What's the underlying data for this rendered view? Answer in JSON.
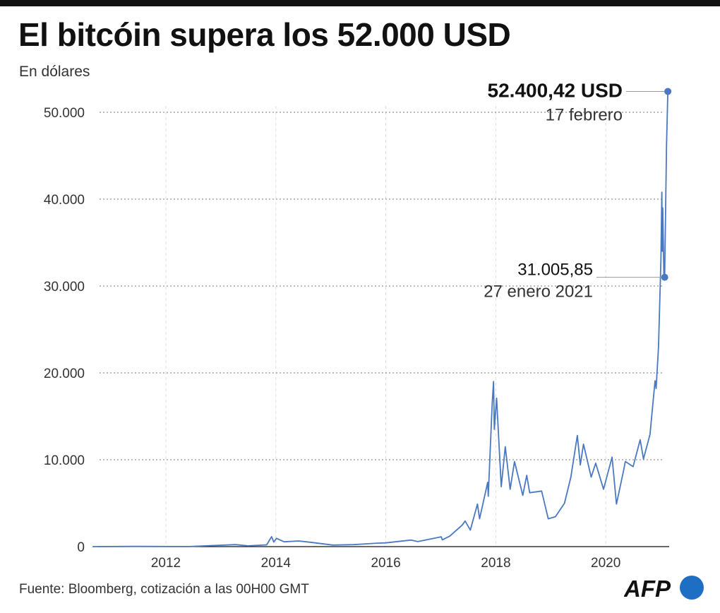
{
  "title": "El bitcóin supera los 52.000 USD",
  "subtitle": "En dólares",
  "source": "Fuente: Bloomberg, cotización a las 00H00 GMT",
  "logo": "AFP",
  "colors": {
    "line": "#4a78c2",
    "logo": "#1e6fc4"
  },
  "chart_data": {
    "type": "line",
    "title": "El bitcóin supera los 52.000 USD",
    "ylabel": "En dólares",
    "ylim": [
      0,
      52400
    ],
    "yticks": [
      0,
      10000,
      20000,
      30000,
      40000,
      50000
    ],
    "ytick_labels": [
      "0",
      "10.000",
      "20.000",
      "30.000",
      "40.000",
      "50.000"
    ],
    "xticks": [
      "2012",
      "2014",
      "2016",
      "2018",
      "2020"
    ],
    "grid": true,
    "series": [
      {
        "points": [
          [
            "2010-09-01",
            0.06
          ],
          [
            "2011-06-08",
            30
          ],
          [
            "2012-06-01",
            6
          ],
          [
            "2013-04-09",
            230
          ],
          [
            "2013-07-01",
            90
          ],
          [
            "2013-11-01",
            200
          ],
          [
            "2013-12-04",
            1150
          ],
          [
            "2013-12-18",
            520
          ],
          [
            "2014-01-05",
            950
          ],
          [
            "2014-02-25",
            550
          ],
          [
            "2014-06-01",
            650
          ],
          [
            "2014-09-01",
            470
          ],
          [
            "2015-01-14",
            180
          ],
          [
            "2015-06-01",
            230
          ],
          [
            "2015-11-04",
            400
          ],
          [
            "2016-01-01",
            430
          ],
          [
            "2016-06-17",
            760
          ],
          [
            "2016-08-01",
            580
          ],
          [
            "2017-01-04",
            1130
          ],
          [
            "2017-01-11",
            780
          ],
          [
            "2017-03-01",
            1200
          ],
          [
            "2017-05-24",
            2500
          ],
          [
            "2017-06-11",
            2950
          ],
          [
            "2017-07-16",
            1900
          ],
          [
            "2017-09-01",
            4900
          ],
          [
            "2017-09-15",
            3200
          ],
          [
            "2017-11-08",
            7400
          ],
          [
            "2017-11-12",
            5800
          ],
          [
            "2017-12-08",
            16500
          ],
          [
            "2017-12-17",
            19000
          ],
          [
            "2017-12-22",
            13500
          ],
          [
            "2018-01-06",
            17100
          ],
          [
            "2018-02-06",
            6900
          ],
          [
            "2018-03-05",
            11500
          ],
          [
            "2018-04-06",
            6600
          ],
          [
            "2018-05-05",
            9800
          ],
          [
            "2018-06-29",
            5900
          ],
          [
            "2018-07-25",
            8200
          ],
          [
            "2018-08-14",
            6200
          ],
          [
            "2018-11-01",
            6400
          ],
          [
            "2018-12-15",
            3200
          ],
          [
            "2019-02-01",
            3450
          ],
          [
            "2019-04-02",
            5000
          ],
          [
            "2019-05-14",
            8000
          ],
          [
            "2019-06-26",
            12800
          ],
          [
            "2019-07-16",
            9400
          ],
          [
            "2019-08-06",
            11800
          ],
          [
            "2019-09-26",
            8000
          ],
          [
            "2019-10-26",
            9600
          ],
          [
            "2019-12-17",
            6600
          ],
          [
            "2020-02-12",
            10300
          ],
          [
            "2020-03-12",
            4900
          ],
          [
            "2020-04-29",
            8800
          ],
          [
            "2020-05-10",
            9800
          ],
          [
            "2020-07-01",
            9200
          ],
          [
            "2020-08-17",
            12300
          ],
          [
            "2020-09-08",
            10100
          ],
          [
            "2020-10-21",
            12900
          ],
          [
            "2020-11-24",
            19100
          ],
          [
            "2020-12-01",
            18200
          ],
          [
            "2020-12-17",
            23000
          ],
          [
            "2021-01-02",
            33000
          ],
          [
            "2021-01-08",
            40800
          ],
          [
            "2021-01-11",
            34000
          ],
          [
            "2021-01-14",
            39000
          ],
          [
            "2021-01-22",
            30800
          ],
          [
            "2021-01-27",
            31005.85
          ],
          [
            "2021-02-08",
            46000
          ],
          [
            "2021-02-17",
            52400.42
          ]
        ]
      }
    ],
    "annotations": [
      {
        "value": "52.400,42 USD",
        "label": "17 febrero",
        "x": "2021-02-17",
        "y": 52400.42
      },
      {
        "value": "31.005,85",
        "label": "27 enero 2021",
        "x": "2021-01-27",
        "y": 31005.85
      }
    ]
  }
}
